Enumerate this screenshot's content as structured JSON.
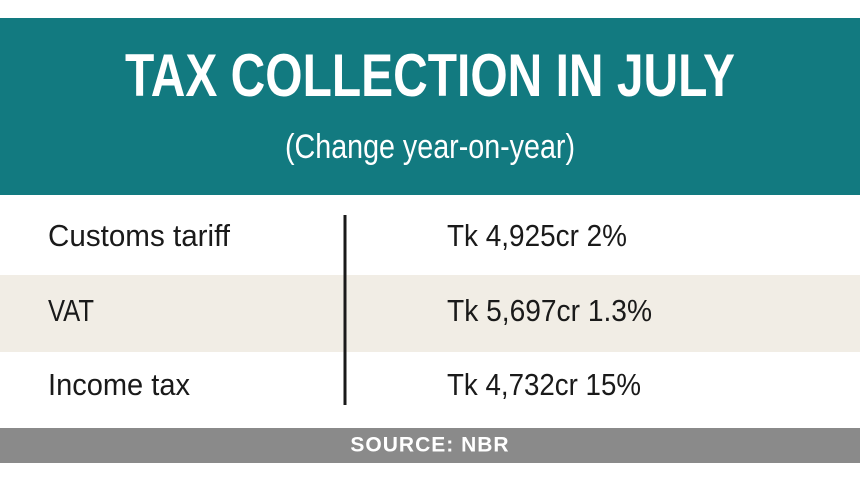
{
  "header": {
    "title": "TAX COLLECTION IN JULY",
    "subtitle": "(Change year-on-year)"
  },
  "table": {
    "rows": [
      [
        "Customs tariff",
        "Tk 4,925cr 2%"
      ],
      [
        "VAT",
        "Tk 5,697cr 1.3%"
      ],
      [
        "Income tax",
        "Tk 4,732cr 15%"
      ]
    ]
  },
  "source": "SOURCE: NBR"
}
